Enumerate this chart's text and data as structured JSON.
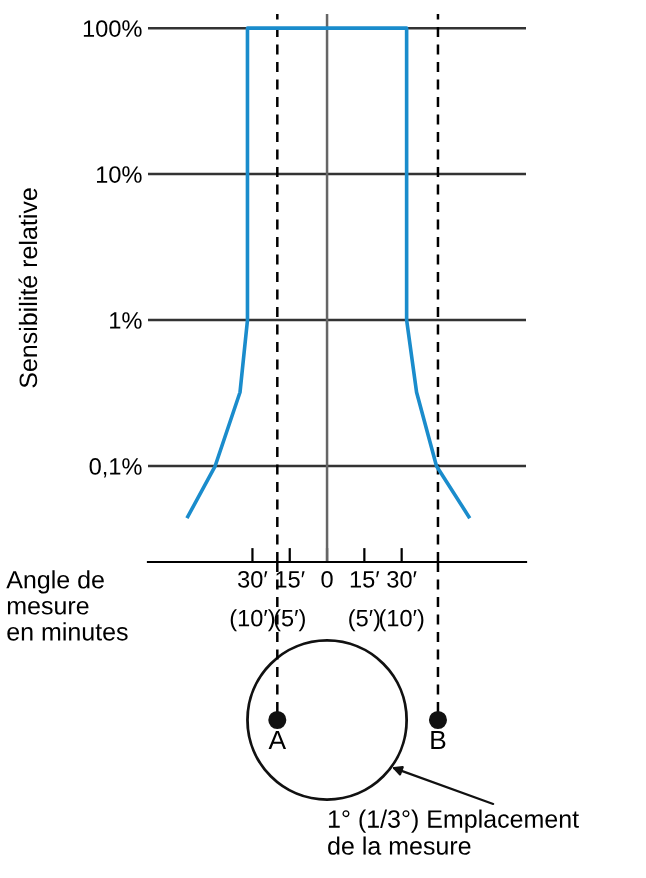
{
  "chart_data": {
    "type": "line",
    "ylabel": "Sensibilité relative",
    "xlabel": "Angle de\nmesure\nen minutes",
    "x": [
      -56,
      -45,
      -35,
      -32,
      -32,
      32,
      32,
      36,
      44,
      57
    ],
    "series": [
      {
        "color": "#1a8ccc",
        "values": [
          0.045,
          0.1,
          0.32,
          1,
          100,
          100,
          1,
          0.32,
          0.1,
          0.045
        ]
      }
    ],
    "log": "y",
    "xlim": [
      -72,
      80
    ],
    "ylim": [
      0.022,
      125
    ],
    "yticks": [
      {
        "value": 100,
        "label": "100%"
      },
      {
        "value": 10,
        "label": "10%"
      },
      {
        "value": 1,
        "label": "1%"
      },
      {
        "value": 0.1,
        "label": "0,1%"
      }
    ],
    "xticks": [
      {
        "value": -30,
        "label": "30′"
      },
      {
        "value": -15,
        "label": "15′"
      },
      0,
      {
        "value": 15,
        "label": "15′"
      },
      {
        "value": 30,
        "label": "30′"
      }
    ],
    "grid": "y",
    "marker": "none",
    "line_style": "solid",
    "ref_lines": [
      {
        "axis": "x",
        "value": -20,
        "color": "#000000",
        "line_style": "dashed"
      },
      {
        "axis": "x",
        "value": 44.6,
        "color": "#000000",
        "line_style": "dashed"
      },
      {
        "axis": "x",
        "value": 0,
        "color": "#666666",
        "line_style": "solid"
      }
    ],
    "annotations": [
      "A",
      "B",
      "1° (1/3°) Emplacement\nde la mesure",
      "(10′)",
      "(5′)",
      "(5′)",
      "(10′)"
    ]
  }
}
